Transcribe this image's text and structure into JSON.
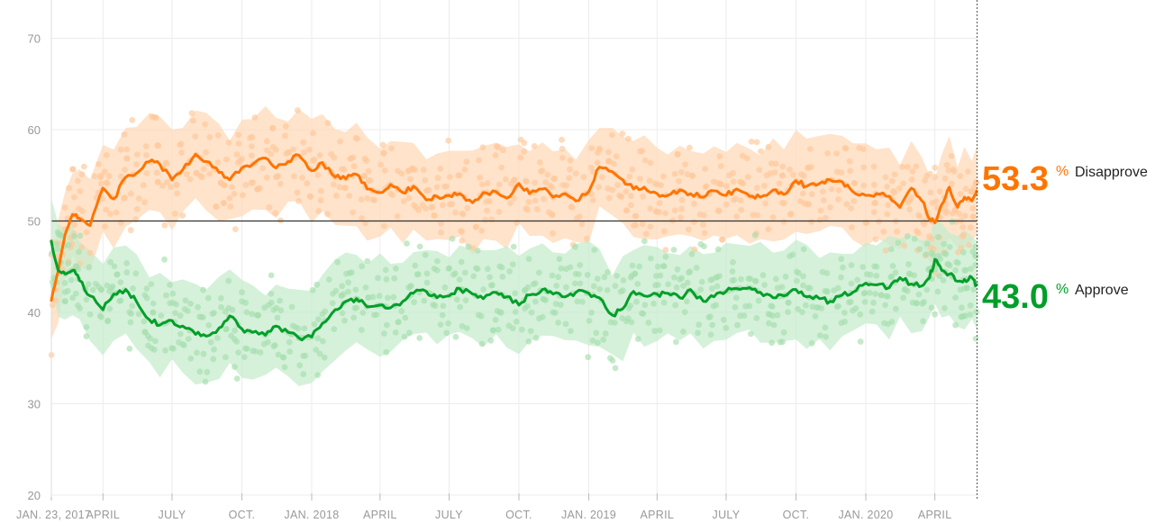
{
  "chart_data": {
    "type": "line",
    "title": "",
    "xlabel": "",
    "ylabel": "",
    "ylim": [
      20,
      73
    ],
    "xlim": [
      "2017-01-23",
      "2020-05-26"
    ],
    "y_ticks": [
      20,
      30,
      40,
      50,
      60,
      70
    ],
    "x_ticks": [
      {
        "date": "2017-01-23",
        "label": "JAN. 23, 2017"
      },
      {
        "date": "2017-04-01",
        "label": "APRIL"
      },
      {
        "date": "2017-07-01",
        "label": "JULY"
      },
      {
        "date": "2017-10-01",
        "label": "OCT."
      },
      {
        "date": "2018-01-01",
        "label": "JAN. 2018"
      },
      {
        "date": "2018-04-01",
        "label": "APRIL"
      },
      {
        "date": "2018-07-01",
        "label": "JULY"
      },
      {
        "date": "2018-10-01",
        "label": "OCT."
      },
      {
        "date": "2019-01-01",
        "label": "JAN. 2019"
      },
      {
        "date": "2019-04-01",
        "label": "APRIL"
      },
      {
        "date": "2019-07-01",
        "label": "JULY"
      },
      {
        "date": "2019-10-01",
        "label": "OCT."
      },
      {
        "date": "2020-01-01",
        "label": "JAN. 2020"
      },
      {
        "date": "2020-04-01",
        "label": "APRIL"
      }
    ],
    "reference_line": 50,
    "grid": true,
    "series": [
      {
        "name": "Disapprove",
        "color": "#ff7400",
        "band_color": "#ffd9b8",
        "dot_color": "#ffc89a",
        "latest": "53.3",
        "x": [
          "2017-01-23",
          "2017-02-01",
          "2017-02-10",
          "2017-02-20",
          "2017-03-01",
          "2017-03-15",
          "2017-04-01",
          "2017-04-15",
          "2017-05-01",
          "2017-05-15",
          "2017-06-01",
          "2017-06-15",
          "2017-07-01",
          "2017-07-15",
          "2017-08-01",
          "2017-08-15",
          "2017-09-01",
          "2017-09-15",
          "2017-10-01",
          "2017-10-15",
          "2017-11-01",
          "2017-11-15",
          "2017-12-01",
          "2017-12-15",
          "2018-01-01",
          "2018-01-15",
          "2018-02-01",
          "2018-02-15",
          "2018-03-01",
          "2018-03-15",
          "2018-04-01",
          "2018-04-15",
          "2018-05-01",
          "2018-05-15",
          "2018-06-01",
          "2018-06-15",
          "2018-07-01",
          "2018-07-15",
          "2018-08-01",
          "2018-08-15",
          "2018-09-01",
          "2018-09-15",
          "2018-10-01",
          "2018-10-15",
          "2018-11-01",
          "2018-11-15",
          "2018-12-01",
          "2018-12-15",
          "2019-01-01",
          "2019-01-15",
          "2019-02-01",
          "2019-02-15",
          "2019-03-01",
          "2019-03-15",
          "2019-04-01",
          "2019-04-15",
          "2019-05-01",
          "2019-05-15",
          "2019-06-01",
          "2019-06-15",
          "2019-07-01",
          "2019-07-15",
          "2019-08-01",
          "2019-08-15",
          "2019-09-01",
          "2019-09-15",
          "2019-10-01",
          "2019-10-15",
          "2019-11-01",
          "2019-11-15",
          "2019-12-01",
          "2019-12-15",
          "2020-01-01",
          "2020-01-15",
          "2020-02-01",
          "2020-02-15",
          "2020-03-01",
          "2020-03-15",
          "2020-03-25",
          "2020-04-01",
          "2020-04-10",
          "2020-04-20",
          "2020-05-01",
          "2020-05-10",
          "2020-05-20",
          "2020-05-26"
        ],
        "values": [
          41.3,
          44.5,
          48.5,
          50.7,
          50.3,
          49.5,
          53.6,
          52.4,
          54.8,
          55.2,
          56.5,
          56.2,
          54.5,
          55.6,
          57.3,
          56.5,
          55.3,
          54.5,
          55.8,
          56.2,
          56.9,
          55.8,
          56.5,
          57.2,
          55.5,
          56.4,
          54.8,
          54.6,
          55.1,
          53.5,
          53.1,
          54.0,
          53.1,
          53.8,
          52.3,
          52.7,
          52.8,
          53.0,
          52.0,
          53.1,
          53.2,
          52.5,
          54.1,
          53.0,
          53.5,
          52.6,
          53.0,
          52.2,
          53.2,
          55.9,
          55.4,
          54.5,
          53.5,
          53.7,
          53.0,
          52.8,
          53.4,
          53.0,
          52.6,
          53.3,
          52.8,
          53.5,
          52.7,
          52.6,
          53.4,
          52.9,
          54.4,
          53.8,
          54.1,
          54.5,
          54.3,
          53.2,
          52.8,
          53.0,
          52.7,
          51.5,
          53.6,
          52.2,
          50.2,
          49.8,
          51.8,
          53.7,
          51.5,
          52.6,
          52.2,
          53.3
        ]
      },
      {
        "name": "Approve",
        "color": "#009f29",
        "band_color": "#c7ecce",
        "dot_color": "#a6dfae",
        "latest": "43.0",
        "x": [
          "2017-01-23",
          "2017-02-01",
          "2017-02-10",
          "2017-02-20",
          "2017-03-01",
          "2017-03-15",
          "2017-04-01",
          "2017-04-15",
          "2017-05-01",
          "2017-05-15",
          "2017-06-01",
          "2017-06-15",
          "2017-07-01",
          "2017-07-15",
          "2017-08-01",
          "2017-08-15",
          "2017-09-01",
          "2017-09-15",
          "2017-10-01",
          "2017-10-15",
          "2017-11-01",
          "2017-11-15",
          "2017-12-01",
          "2017-12-15",
          "2018-01-01",
          "2018-01-15",
          "2018-02-01",
          "2018-02-15",
          "2018-03-01",
          "2018-03-15",
          "2018-04-01",
          "2018-04-15",
          "2018-05-01",
          "2018-05-15",
          "2018-06-01",
          "2018-06-15",
          "2018-07-01",
          "2018-07-15",
          "2018-08-01",
          "2018-08-15",
          "2018-09-01",
          "2018-09-15",
          "2018-10-01",
          "2018-10-15",
          "2018-11-01",
          "2018-11-15",
          "2018-12-01",
          "2018-12-15",
          "2019-01-01",
          "2019-01-15",
          "2019-02-01",
          "2019-02-15",
          "2019-03-01",
          "2019-03-15",
          "2019-04-01",
          "2019-04-15",
          "2019-05-01",
          "2019-05-15",
          "2019-06-01",
          "2019-06-15",
          "2019-07-01",
          "2019-07-15",
          "2019-08-01",
          "2019-08-15",
          "2019-09-01",
          "2019-09-15",
          "2019-10-01",
          "2019-10-15",
          "2019-11-01",
          "2019-11-15",
          "2019-12-01",
          "2019-12-15",
          "2020-01-01",
          "2020-01-15",
          "2020-02-01",
          "2020-02-15",
          "2020-03-01",
          "2020-03-15",
          "2020-03-25",
          "2020-04-01",
          "2020-04-10",
          "2020-04-20",
          "2020-05-01",
          "2020-05-10",
          "2020-05-20",
          "2020-05-26"
        ],
        "values": [
          47.8,
          44.6,
          44.2,
          44.6,
          43.5,
          41.8,
          40.3,
          42.0,
          42.5,
          41.2,
          39.2,
          38.6,
          39.1,
          38.5,
          37.6,
          37.4,
          38.3,
          39.6,
          38.2,
          37.8,
          37.5,
          38.5,
          37.8,
          37.2,
          37.3,
          38.8,
          40.3,
          41.2,
          41.5,
          40.6,
          40.8,
          40.5,
          41.2,
          42.1,
          42.3,
          41.6,
          41.8,
          42.6,
          42.0,
          41.5,
          42.2,
          41.7,
          40.8,
          41.9,
          42.5,
          42.0,
          41.7,
          42.2,
          42.1,
          41.6,
          39.7,
          40.4,
          42.3,
          41.8,
          42.0,
          42.1,
          41.6,
          42.5,
          41.2,
          41.7,
          42.3,
          42.6,
          42.7,
          42.2,
          41.6,
          41.8,
          42.5,
          41.7,
          41.5,
          41.2,
          41.9,
          42.2,
          43.2,
          43.0,
          42.7,
          43.8,
          43.1,
          42.9,
          43.8,
          45.8,
          44.6,
          44.2,
          43.4,
          43.6,
          43.8,
          43.0
        ]
      }
    ]
  }
}
